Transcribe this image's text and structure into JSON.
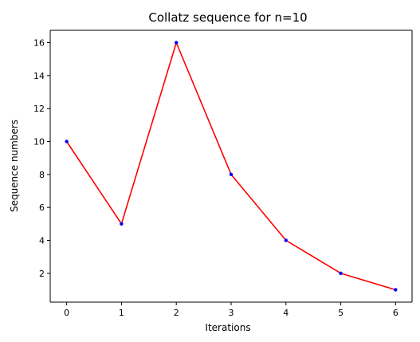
{
  "chart_data": {
    "type": "line",
    "title": "Collatz sequence for n=10",
    "xlabel": "Iterations",
    "ylabel": "Sequence numbers",
    "x": [
      0,
      1,
      2,
      3,
      4,
      5,
      6
    ],
    "series": [
      {
        "values": [
          10,
          5,
          16,
          8,
          4,
          2,
          1
        ]
      }
    ],
    "xlim": [
      -0.3,
      6.3
    ],
    "ylim": [
      0.25,
      16.75
    ],
    "xticks": [
      0,
      1,
      2,
      3,
      4,
      5,
      6
    ],
    "yticks": [
      2,
      4,
      6,
      8,
      10,
      12,
      14,
      16
    ],
    "grid": false,
    "line_color": "#ff0000",
    "marker_color": "#0000ff"
  }
}
